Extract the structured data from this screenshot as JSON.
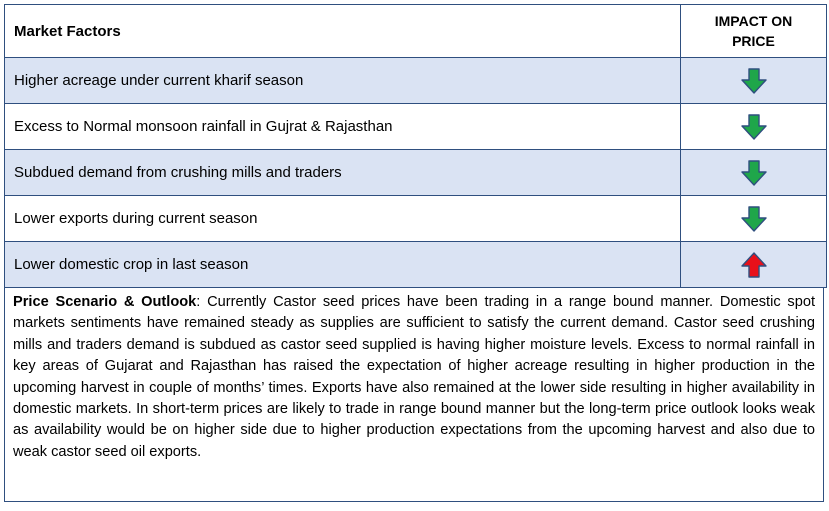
{
  "table": {
    "header": {
      "factor": "Market Factors",
      "impact_line1": "IMPACT ON",
      "impact_line2": "PRICE"
    },
    "rows": [
      {
        "factor": "Higher acreage under current kharif season",
        "impact": "down",
        "shaded": true
      },
      {
        "factor": "Excess to Normal monsoon rainfall in Gujrat & Rajasthan",
        "impact": "down",
        "shaded": false
      },
      {
        "factor": "Subdued demand from crushing mills and traders",
        "impact": "down",
        "shaded": true
      },
      {
        "factor": "Lower exports during current season",
        "impact": "down",
        "shaded": false
      },
      {
        "factor": "Lower domestic crop in last season",
        "impact": "up",
        "shaded": true
      }
    ]
  },
  "colors": {
    "down_arrow": "#1fa64a",
    "up_arrow": "#e8101a",
    "arrow_outline": "#2f4f7f",
    "shaded_row": "#dae3f3",
    "border": "#2f4f7f"
  },
  "outlook": {
    "label": "Price Scenario & Outlook",
    "text": ": Currently Castor seed prices have been trading in a range bound manner. Domestic spot markets sentiments have remained steady as supplies are sufficient to satisfy the current demand. Castor seed crushing mills and traders demand is subdued as castor seed supplied is having higher moisture levels. Excess to normal rainfall in key areas of Gujarat and Rajasthan has raised the expectation of higher acreage resulting in higher production in the upcoming harvest in couple of months’ times. Exports have also remained at the lower side resulting in higher availability in domestic markets. In short-term prices are likely to trade in range bound manner but the long-term price outlook looks weak as availability would be on higher side due to higher production expectations from the upcoming harvest and also due to weak castor seed oil exports."
  }
}
